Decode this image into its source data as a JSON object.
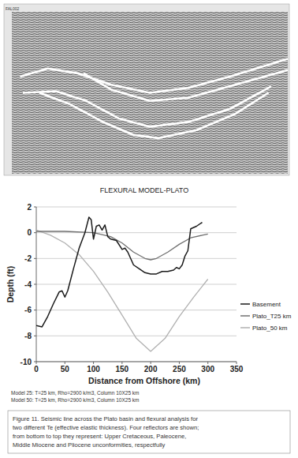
{
  "chart_data": {
    "type": "line",
    "title": "FLEXURAL MODEL-PLATO",
    "x_label": "Distance from Offshore (km)",
    "y_label": "Depth (ft)",
    "xlim": [
      0,
      350
    ],
    "xticks": [
      0,
      50,
      100,
      150,
      200,
      250,
      300,
      350
    ],
    "ylim": [
      -10,
      2
    ],
    "yticks": [
      -10,
      -8,
      -6,
      -4,
      -2,
      0,
      2
    ],
    "grid": true,
    "legend": "right",
    "series": [
      {
        "name": "Basement",
        "color": "#1a1a1a",
        "x": [
          0,
          10,
          20,
          30,
          40,
          45,
          50,
          55,
          65,
          75,
          85,
          92,
          96,
          100,
          105,
          110,
          115,
          120,
          125,
          130,
          140,
          150,
          155,
          160,
          170,
          180,
          190,
          200,
          210,
          220,
          230,
          240,
          245,
          250,
          255,
          260,
          265,
          270,
          280,
          290
        ],
        "values": [
          -7.2,
          -7.3,
          -6.5,
          -5.5,
          -4.6,
          -4.5,
          -5,
          -4.5,
          -2.8,
          -1.2,
          0,
          1.2,
          1,
          -0.5,
          0.5,
          0.6,
          0.2,
          0.6,
          -0.3,
          -0.5,
          -0.6,
          -1.3,
          -1.2,
          -1.5,
          -2.5,
          -2.8,
          -3.1,
          -3.2,
          -3.2,
          -3,
          -3,
          -2.9,
          -2.7,
          -2.8,
          -2.5,
          -1.8,
          -1.4,
          0.3,
          0.5,
          0.8
        ]
      },
      {
        "name": "Plato_T25 km",
        "color": "#707070",
        "x": [
          0,
          50,
          100,
          130,
          150,
          170,
          190,
          200,
          210,
          230,
          250,
          270,
          290,
          300
        ],
        "values": [
          0.1,
          0.1,
          0,
          -0.3,
          -0.8,
          -1.5,
          -2,
          -2.1,
          -2,
          -1.5,
          -0.9,
          -0.4,
          -0.2,
          -0.1
        ]
      },
      {
        "name": "Plato_50 km",
        "color": "#b0b0b0",
        "x": [
          0,
          25,
          50,
          75,
          100,
          125,
          150,
          175,
          200,
          225,
          250,
          275,
          300
        ],
        "values": [
          0.2,
          -0.2,
          -0.8,
          -1.7,
          -3,
          -4.6,
          -6.4,
          -8.2,
          -9.2,
          -8.2,
          -6.5,
          -5,
          -3.6
        ]
      }
    ],
    "notes": [
      "Model 25: T=25 km, Rho=2900 k/m3, Column 10X25 km",
      "Model 50: T=25 km, Rho=2900 k/m3, Column 10X25 km"
    ],
    "caption": [
      "Figure 11. Seismic line across the Plato basin and flexural analysis for",
      "two different Te (effective elastic thickness). Four reflectors are shown;",
      "from bottom to top they represent: Upper Cretaceous, Paleocene,",
      "Middle Miocene and Pliocene unconformities, respectfully"
    ],
    "seismic": {
      "label": "FAL002",
      "horizons": [
        {
          "x": [
            3,
            13,
            24,
            36,
            50,
            64,
            79,
            100
          ],
          "y": [
            40,
            35,
            38,
            45,
            50,
            47,
            40,
            29
          ]
        },
        {
          "x": [
            26,
            36,
            50,
            64,
            81,
            100
          ],
          "y": [
            38,
            48,
            55,
            53,
            45,
            36
          ]
        },
        {
          "x": [
            4,
            16,
            27,
            39,
            50,
            64,
            79,
            94
          ],
          "y": [
            50,
            49,
            55,
            66,
            71,
            68,
            60,
            46
          ]
        },
        {
          "x": [
            10,
            21,
            33,
            44,
            53,
            67,
            81,
            93
          ],
          "y": [
            50,
            57,
            68,
            76,
            78,
            73,
            63,
            50
          ]
        }
      ]
    }
  }
}
